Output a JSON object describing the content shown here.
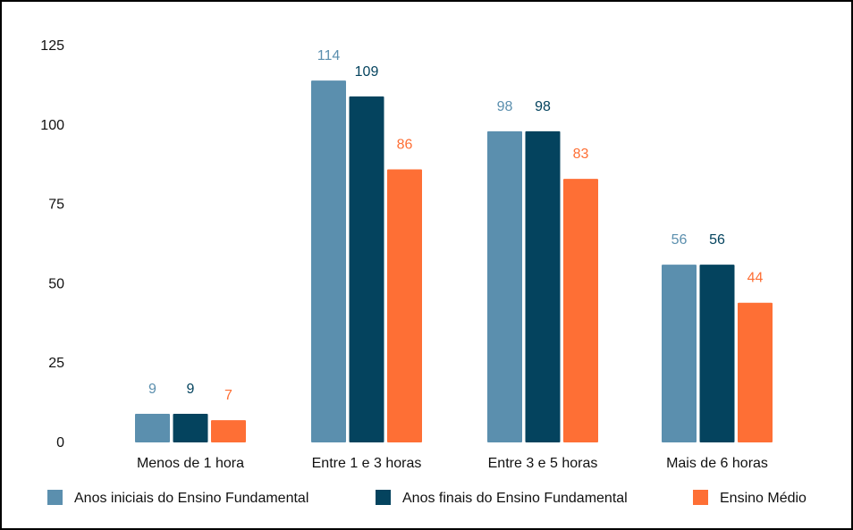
{
  "chart_data": {
    "type": "bar",
    "categories": [
      "Menos de 1 hora",
      "Entre 1 e 3 horas",
      "Entre 3 e 5 horas",
      "Mais de 6 horas"
    ],
    "series": [
      {
        "name": "Anos iniciais do Ensino Fundamental",
        "values": [
          9,
          114,
          98,
          56
        ],
        "color": "#5b8fae"
      },
      {
        "name": "Anos finais do Ensino Fundamental",
        "values": [
          9,
          109,
          98,
          56
        ],
        "color": "#04435e"
      },
      {
        "name": "Ensino Médio",
        "values": [
          7,
          86,
          83,
          44
        ],
        "color": "#fe6f35"
      }
    ],
    "yticks": [
      0,
      25,
      50,
      75,
      100,
      125
    ],
    "ylim": [
      0,
      125
    ],
    "title": "",
    "xlabel": "",
    "ylabel": "",
    "grid": false,
    "legend": "bottom",
    "data_labels": true
  }
}
